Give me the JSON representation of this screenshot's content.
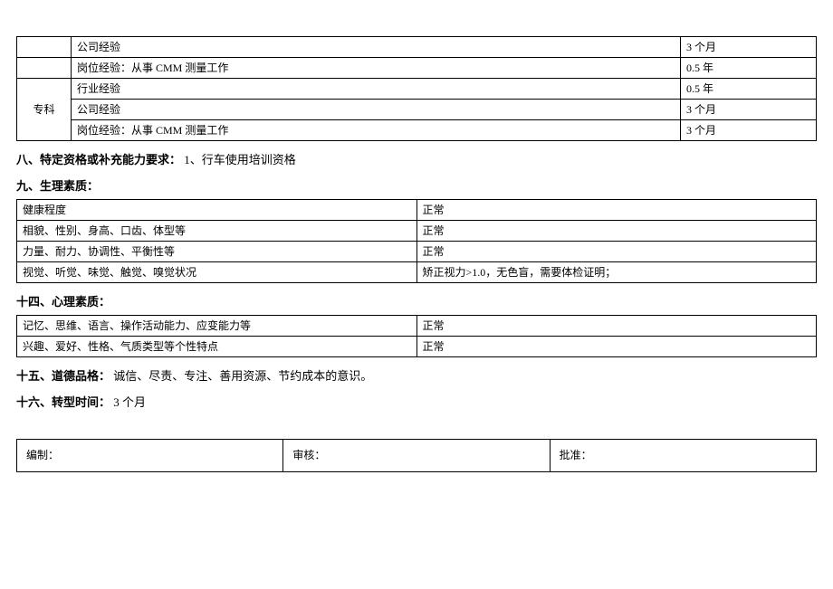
{
  "experience_table": {
    "rows": [
      {
        "group": "",
        "label": "公司经验",
        "value": "3 个月",
        "rowspan": 0
      },
      {
        "group": "",
        "label": "岗位经验：从事 CMM 测量工作",
        "value": "0.5 年",
        "rowspan": 0
      },
      {
        "group": "专科",
        "label": "行业经验",
        "value": "0.5 年",
        "rowspan": 3
      },
      {
        "group": "",
        "label": "公司经验",
        "value": "3 个月",
        "rowspan": 0
      },
      {
        "group": "",
        "label": "岗位经验：从事 CMM 测量工作",
        "value": "3 个月",
        "rowspan": 0
      }
    ]
  },
  "section8": {
    "heading": "八、特定资格或补充能力要求：",
    "text": "1、行车使用培训资格"
  },
  "section9": {
    "heading": "九、生理素质：",
    "rows": [
      {
        "label": "健康程度",
        "value": "正常"
      },
      {
        "label": "相貌、性别、身高、口齿、体型等",
        "value": "正常"
      },
      {
        "label": "力量、耐力、协调性、平衡性等",
        "value": "正常"
      },
      {
        "label": "视觉、听觉、味觉、触觉、嗅觉状况",
        "value": "矫正视力>1.0，无色盲，需要体检证明；"
      }
    ]
  },
  "section14": {
    "heading": "十四、心理素质：",
    "rows": [
      {
        "label": "记忆、思维、语言、操作活动能力、应变能力等",
        "value": "正常"
      },
      {
        "label": "兴趣、爱好、性格、气质类型等个性特点",
        "value": "正常"
      }
    ]
  },
  "section15": {
    "heading": "十五、道德品格：",
    "text": "诚信、尽责、专注、善用资源、节约成本的意识。"
  },
  "section16": {
    "heading": "十六、转型时间：",
    "text": " 3 个月"
  },
  "signoff": {
    "col1": "编制：",
    "col2": "审核：",
    "col3": "批准："
  }
}
